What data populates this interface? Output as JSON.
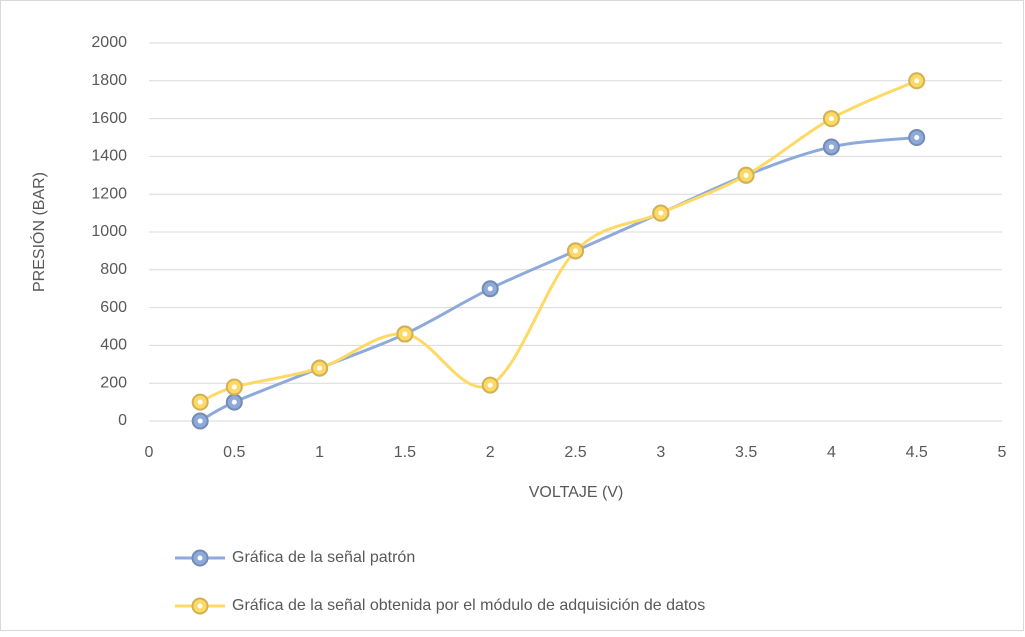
{
  "chart_data": {
    "type": "line",
    "xlabel": "VOLTAJE (V)",
    "ylabel": "PRESIÓN (BAR)",
    "x": [
      0.3,
      0.5,
      1,
      1.5,
      2,
      2.5,
      3,
      3.5,
      4,
      4.5
    ],
    "series": [
      {
        "name": "Gráfica de la señal patrón",
        "color": "#8eaadb",
        "values": [
          0,
          100,
          280,
          460,
          700,
          900,
          1100,
          1300,
          1450,
          1500
        ]
      },
      {
        "name": "Gráfica de la señal obtenida por el módulo de adquisición de datos",
        "color": "#ffd966",
        "values": [
          100,
          180,
          280,
          460,
          190,
          900,
          1100,
          1300,
          1600,
          1800
        ]
      }
    ],
    "smooth": true,
    "xlim": [
      0,
      5
    ],
    "xticks": [
      0,
      0.5,
      1,
      1.5,
      2,
      2.5,
      3,
      3.5,
      4,
      4.5,
      5
    ],
    "ylim": [
      0,
      2000
    ],
    "yticks": [
      0,
      200,
      400,
      600,
      800,
      1000,
      1200,
      1400,
      1600,
      1800,
      2000
    ],
    "grid": true,
    "legend": "bottom"
  }
}
